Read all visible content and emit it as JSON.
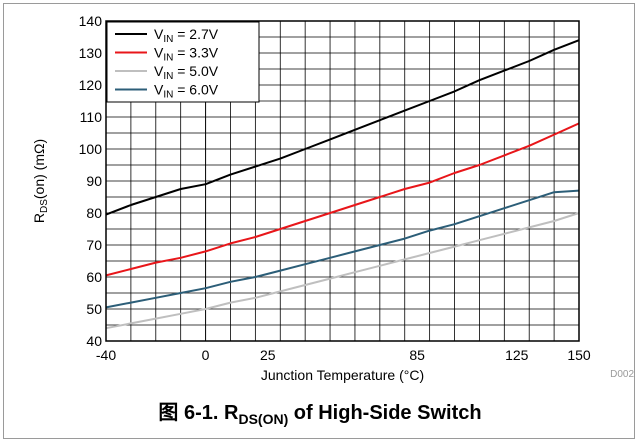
{
  "chart_data": {
    "type": "line",
    "ylabel": "R",
    "ylabel_sub": "DS",
    "ylabel_rest": "(on) (mΩ)",
    "xlabel": "Junction Temperature (°C)",
    "xlim": [
      -40,
      150
    ],
    "ylim": [
      40,
      140
    ],
    "x_major_ticks": [
      -40,
      0,
      25,
      85,
      125,
      150
    ],
    "x_grid_step": 10,
    "y_ticks": [
      40,
      50,
      60,
      70,
      80,
      90,
      100,
      110,
      120,
      130,
      140
    ],
    "y_grid_step": 5,
    "grid": true,
    "legend_position": "top-left",
    "x": [
      -40,
      -30,
      -20,
      -10,
      0,
      10,
      20,
      30,
      40,
      50,
      60,
      70,
      80,
      90,
      100,
      110,
      120,
      130,
      140,
      150
    ],
    "series": [
      {
        "name_pre": "V",
        "name_sub": "IN",
        "name_post": " = 2.7V",
        "color": "#000000",
        "values": [
          79.5,
          82.5,
          85.0,
          87.5,
          89.0,
          92.0,
          94.5,
          97.0,
          100.0,
          103.0,
          106.0,
          109.0,
          112.0,
          115.0,
          118.0,
          121.5,
          124.5,
          127.5,
          131.0,
          134.0
        ]
      },
      {
        "name_pre": "V",
        "name_sub": "IN",
        "name_post": " = 3.3V",
        "color": "#e8161a",
        "values": [
          60.5,
          62.5,
          64.5,
          66.0,
          68.0,
          70.5,
          72.5,
          75.0,
          77.5,
          80.0,
          82.5,
          85.0,
          87.5,
          89.5,
          92.5,
          95.0,
          98.0,
          101.0,
          104.5,
          108.0
        ]
      },
      {
        "name_pre": "V",
        "name_sub": "IN",
        "name_post": " = 5.0V",
        "color": "#bfbfbf",
        "values": [
          44.0,
          45.5,
          47.0,
          48.5,
          50.0,
          52.0,
          53.5,
          55.5,
          57.5,
          59.5,
          61.5,
          63.5,
          65.5,
          67.5,
          69.5,
          71.5,
          73.5,
          75.5,
          77.5,
          80.0
        ]
      },
      {
        "name_pre": "V",
        "name_sub": "IN",
        "name_post": " = 6.0V",
        "color": "#2c5e78",
        "values": [
          50.5,
          52.0,
          53.5,
          55.0,
          56.5,
          58.5,
          60.0,
          62.0,
          64.0,
          66.0,
          68.0,
          70.0,
          72.0,
          74.5,
          76.5,
          79.0,
          81.5,
          84.0,
          86.5,
          87.0
        ]
      }
    ],
    "code": "D002"
  },
  "caption": {
    "prefix": "图 6-1. R",
    "sub": "DS(ON)",
    "suffix": " of High-Side Switch"
  }
}
